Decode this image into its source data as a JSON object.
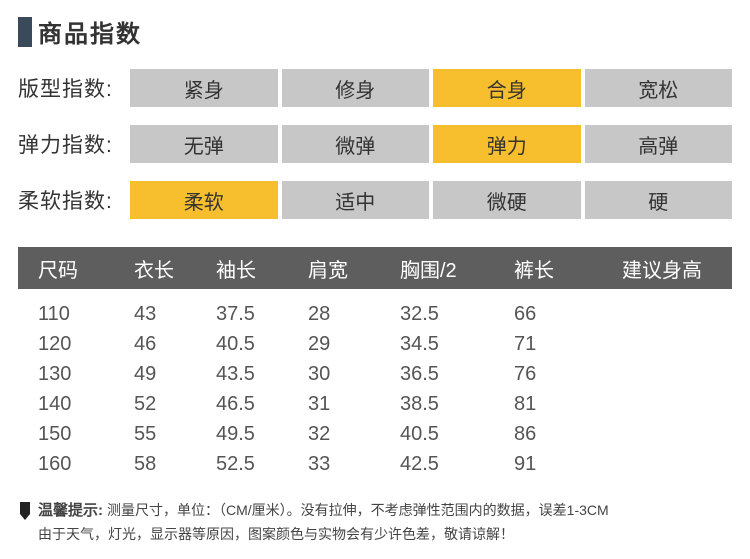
{
  "title": "商品指数",
  "indices": [
    {
      "label": "版型指数:",
      "options": [
        "紧身",
        "修身",
        "合身",
        "宽松"
      ],
      "selected": 2
    },
    {
      "label": "弹力指数:",
      "options": [
        "无弹",
        "微弹",
        "弹力",
        "高弹"
      ],
      "selected": 2
    },
    {
      "label": "柔软指数:",
      "options": [
        "柔软",
        "适中",
        "微硬",
        "硬"
      ],
      "selected": 0
    }
  ],
  "colors": {
    "gray": "#c7c7c7",
    "yellow": "#f7bf2d",
    "header": "#5e5e5e"
  },
  "table": {
    "headers": [
      "尺码",
      "衣长",
      "袖长",
      "肩宽",
      "胸围/2",
      "裤长",
      "建议身高"
    ],
    "rows": [
      [
        "110",
        "43",
        "37.5",
        "28",
        "32.5",
        "66",
        ""
      ],
      [
        "120",
        "46",
        "40.5",
        "29",
        "34.5",
        "71",
        ""
      ],
      [
        "130",
        "49",
        "43.5",
        "30",
        "36.5",
        "76",
        ""
      ],
      [
        "140",
        "52",
        "46.5",
        "31",
        "38.5",
        "81",
        ""
      ],
      [
        "150",
        "55",
        "49.5",
        "32",
        "40.5",
        "86",
        ""
      ],
      [
        "160",
        "58",
        "52.5",
        "33",
        "42.5",
        "91",
        ""
      ]
    ]
  },
  "tip": {
    "label": "温馨提示:",
    "line1": "测量尺寸，单位：（CM/厘米）。没有拉伸，不考虑弹性范围内的数据，误差1-3CM",
    "line2": "由于天气，灯光，显示器等原因，图案颜色与实物会有少许色差，敬请谅解！"
  }
}
